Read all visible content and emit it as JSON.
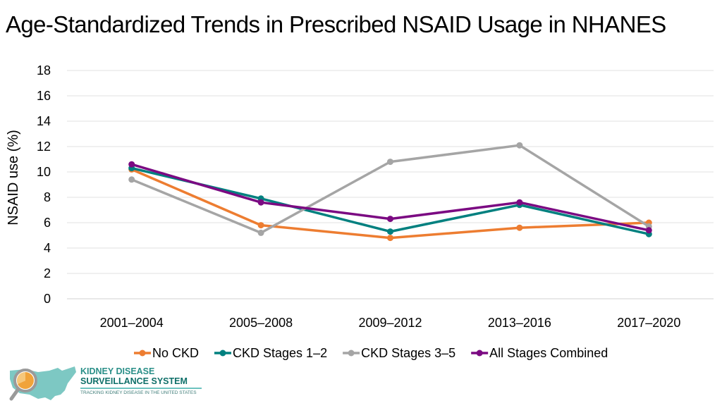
{
  "header": {
    "title": "Age-Standardized Trends in Prescribed NSAID Usage in NHANES"
  },
  "chart_data": {
    "type": "line",
    "title": "Age-Standardized Trends in Prescribed NSAID Usage in NHANES",
    "xlabel": "",
    "ylabel": "NSAID use (%)",
    "ylim": [
      0,
      18
    ],
    "yticks": [
      "0",
      "2",
      "4",
      "6",
      "8",
      "10",
      "12",
      "14",
      "16",
      "18"
    ],
    "categories": [
      "2001–2004",
      "2005–2008",
      "2009–2012",
      "2013–2016",
      "2017–2020"
    ],
    "grid": true,
    "legend_position": "bottom",
    "series": [
      {
        "name": "No CKD",
        "color": "#ed7d31",
        "values": [
          10.2,
          5.8,
          4.8,
          5.6,
          6.0
        ]
      },
      {
        "name": "CKD Stages 1–2",
        "color": "#00807f",
        "values": [
          10.3,
          7.9,
          5.3,
          7.4,
          5.1
        ]
      },
      {
        "name": "CKD Stages 3–5",
        "color": "#a5a5a5",
        "values": [
          9.4,
          5.2,
          10.8,
          12.1,
          5.7
        ]
      },
      {
        "name": "All Stages Combined",
        "color": "#7b0a82",
        "values": [
          10.6,
          7.6,
          6.3,
          7.6,
          5.4
        ]
      }
    ]
  },
  "logo": {
    "line1": "KIDNEY DISEASE",
    "line2": "SURVEILLANCE SYSTEM",
    "tagline": "TRACKING KIDNEY DISEASE IN THE UNITED STATES"
  }
}
